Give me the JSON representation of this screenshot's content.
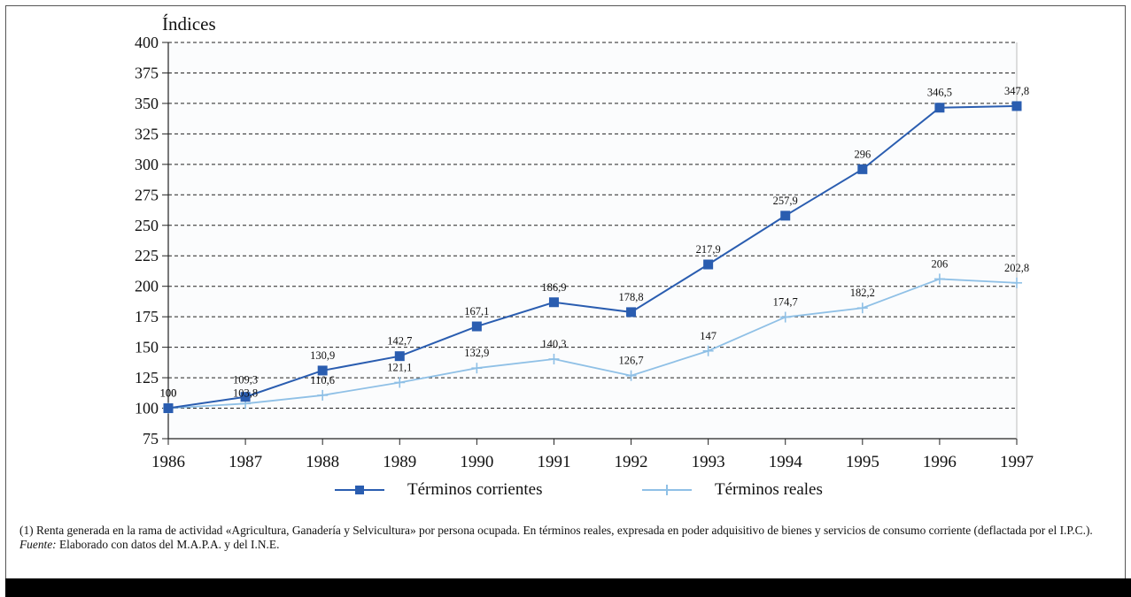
{
  "chart_data": {
    "type": "line",
    "ylabel": "Índices",
    "ylim": [
      75,
      400
    ],
    "yticks": [
      75,
      100,
      125,
      150,
      175,
      200,
      225,
      250,
      275,
      300,
      325,
      350,
      375,
      400
    ],
    "x": [
      "1986",
      "1987",
      "1988",
      "1989",
      "1990",
      "1991",
      "1992",
      "1993",
      "1994",
      "1995",
      "1996",
      "1997"
    ],
    "grid": "horizontal dashed",
    "legend_position": "bottom",
    "series": [
      {
        "name": "Términos corrientes",
        "color": "#2a5db0",
        "marker": "square",
        "values": [
          100,
          109.3,
          130.9,
          142.7,
          167.1,
          186.9,
          178.8,
          217.9,
          257.9,
          296,
          346.5,
          347.8
        ],
        "labels": [
          "100",
          "109,3",
          "130,9",
          "142,7",
          "167,1",
          "186,9",
          "178,8",
          "217,9",
          "257,9",
          "296",
          "346,5",
          "347,8"
        ]
      },
      {
        "name": "Términos reales",
        "color": "#8fc0e6",
        "marker": "plus",
        "values": [
          100,
          103.8,
          110.6,
          121.1,
          132.9,
          140.3,
          126.7,
          147,
          174.7,
          182.2,
          206,
          202.8
        ],
        "labels": [
          "100",
          "103,8",
          "110,6",
          "121,1",
          "132,9",
          "140,3",
          "126,7",
          "147",
          "174,7",
          "182,2",
          "206",
          "202,8"
        ]
      }
    ]
  },
  "legend": {
    "corrientes_label": "Términos corrientes",
    "reales_label": "Términos reales"
  },
  "notes": {
    "footnote": "(1) Renta generada en la rama de actividad «Agricultura, Ganadería y Selvicultura» por persona ocupada. En términos reales, expresada en poder adquisitivo de bienes y servicios de consumo corriente (deflactada por el I.P.C.).",
    "source_label": "Fuente:",
    "source_text": " Elaborado con datos del M.A.P.A. y del I.N.E."
  }
}
